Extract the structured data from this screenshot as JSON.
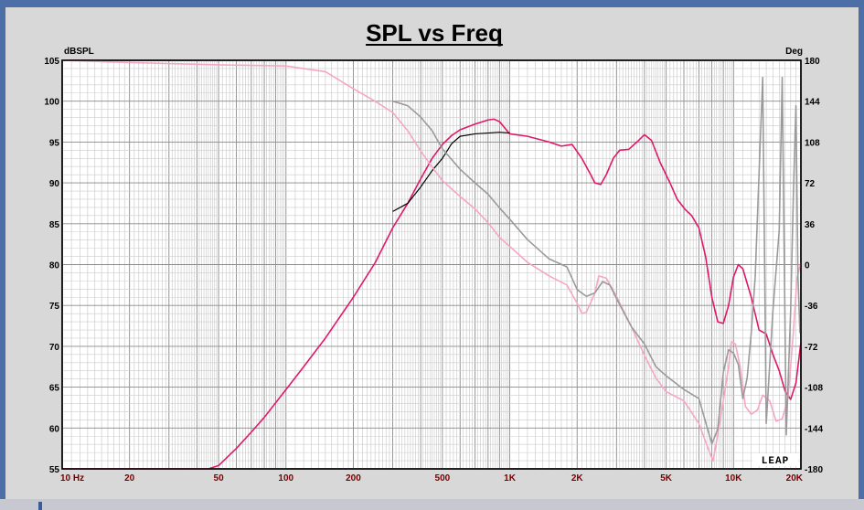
{
  "chart_data": {
    "type": "line",
    "title": "SPL vs Freq",
    "left_unit": "dBSPL",
    "right_unit": "Deg",
    "x_scale": "log",
    "xlim": [
      10,
      20000
    ],
    "ylim": [
      55,
      105
    ],
    "y2lim": [
      -180,
      180
    ],
    "grid": true,
    "x_ticks": [
      {
        "v": 10,
        "label": "10 Hz"
      },
      {
        "v": 20,
        "label": "20"
      },
      {
        "v": 50,
        "label": "50"
      },
      {
        "v": 100,
        "label": "100"
      },
      {
        "v": 200,
        "label": "200"
      },
      {
        "v": 500,
        "label": "500"
      },
      {
        "v": 1000,
        "label": "1K"
      },
      {
        "v": 2000,
        "label": "2K"
      },
      {
        "v": 5000,
        "label": "5K"
      },
      {
        "v": 10000,
        "label": "10K"
      },
      {
        "v": 20000,
        "label": "20K"
      }
    ],
    "y_ticks": [
      "105",
      "100",
      "95",
      "90",
      "85",
      "80",
      "75",
      "70",
      "65",
      "60",
      "55"
    ],
    "y2_ticks": [
      "180",
      "144",
      "108",
      "72",
      "36",
      "0",
      "-36",
      "-72",
      "-108",
      "-144",
      "-180"
    ],
    "watermark": "LEAP",
    "series": [
      {
        "axis": "left",
        "color": "#e0186a",
        "width": 1.6,
        "points": [
          [
            10,
            55
          ],
          [
            20,
            55
          ],
          [
            45,
            55
          ],
          [
            50,
            55.4
          ],
          [
            60,
            57.5
          ],
          [
            70,
            59.5
          ],
          [
            80,
            61.3
          ],
          [
            100,
            64.7
          ],
          [
            120,
            67.5
          ],
          [
            150,
            71
          ],
          [
            200,
            76
          ],
          [
            250,
            80.2
          ],
          [
            300,
            84.5
          ],
          [
            350,
            87.5
          ],
          [
            400,
            90.5
          ],
          [
            450,
            93
          ],
          [
            500,
            94.7
          ],
          [
            550,
            95.8
          ],
          [
            600,
            96.5
          ],
          [
            700,
            97.2
          ],
          [
            800,
            97.7
          ],
          [
            850,
            97.8
          ],
          [
            900,
            97.5
          ],
          [
            1000,
            96
          ],
          [
            1200,
            95.7
          ],
          [
            1500,
            95
          ],
          [
            1700,
            94.5
          ],
          [
            1900,
            94.7
          ],
          [
            2100,
            93
          ],
          [
            2300,
            91
          ],
          [
            2400,
            90
          ],
          [
            2550,
            89.8
          ],
          [
            2700,
            91
          ],
          [
            2900,
            93
          ],
          [
            3100,
            94
          ],
          [
            3400,
            94.1
          ],
          [
            3700,
            95
          ],
          [
            4000,
            95.9
          ],
          [
            4300,
            95.2
          ],
          [
            4700,
            92.5
          ],
          [
            5200,
            90
          ],
          [
            5600,
            88
          ],
          [
            6100,
            86.7
          ],
          [
            6500,
            86
          ],
          [
            7000,
            84.5
          ],
          [
            7500,
            81
          ],
          [
            8000,
            76
          ],
          [
            8500,
            73
          ],
          [
            9000,
            72.8
          ],
          [
            9500,
            75
          ],
          [
            10000,
            78.5
          ],
          [
            10500,
            80
          ],
          [
            11000,
            79.5
          ],
          [
            12000,
            76
          ],
          [
            13000,
            72
          ],
          [
            14000,
            71.5
          ],
          [
            15000,
            69
          ],
          [
            16000,
            67
          ],
          [
            17000,
            64.5
          ],
          [
            18000,
            63.5
          ],
          [
            19000,
            65.5
          ],
          [
            20000,
            70.5
          ]
        ]
      },
      {
        "axis": "left",
        "color": "#000000",
        "width": 1.2,
        "points": [
          [
            300,
            86.5
          ],
          [
            350,
            87.5
          ],
          [
            400,
            89.5
          ],
          [
            450,
            91.5
          ],
          [
            500,
            93
          ],
          [
            550,
            94.8
          ],
          [
            600,
            95.7
          ],
          [
            700,
            96
          ],
          [
            800,
            96.1
          ],
          [
            900,
            96.2
          ],
          [
            1000,
            96.1
          ]
        ]
      },
      {
        "axis": "right",
        "color": "#f5a6c6",
        "width": 1.6,
        "points": [
          [
            10,
            180
          ],
          [
            20,
            178
          ],
          [
            50,
            176
          ],
          [
            100,
            175
          ],
          [
            150,
            170
          ],
          [
            200,
            155
          ],
          [
            250,
            144
          ],
          [
            300,
            134
          ],
          [
            350,
            118
          ],
          [
            400,
            100
          ],
          [
            450,
            86
          ],
          [
            500,
            74
          ],
          [
            600,
            60
          ],
          [
            700,
            49
          ],
          [
            800,
            37
          ],
          [
            900,
            24
          ],
          [
            1000,
            16
          ],
          [
            1200,
            2
          ],
          [
            1500,
            -10
          ],
          [
            1800,
            -18
          ],
          [
            2000,
            -34
          ],
          [
            2100,
            -43
          ],
          [
            2200,
            -42
          ],
          [
            2400,
            -25
          ],
          [
            2500,
            -10
          ],
          [
            2700,
            -12
          ],
          [
            3000,
            -28
          ],
          [
            3500,
            -55
          ],
          [
            4000,
            -80
          ],
          [
            4500,
            -100
          ],
          [
            5000,
            -112
          ],
          [
            6000,
            -120
          ],
          [
            7000,
            -140
          ],
          [
            7800,
            -165
          ],
          [
            8100,
            -173
          ],
          [
            8500,
            -150
          ],
          [
            9000,
            -120
          ],
          [
            9500,
            -90
          ],
          [
            9800,
            -68
          ],
          [
            10200,
            -70
          ],
          [
            10700,
            -90
          ],
          [
            11300,
            -125
          ],
          [
            12000,
            -132
          ],
          [
            12800,
            -128
          ],
          [
            13500,
            -115
          ],
          [
            14500,
            -120
          ],
          [
            15500,
            -138
          ],
          [
            16500,
            -136
          ],
          [
            17500,
            -118
          ],
          [
            18500,
            -60
          ],
          [
            19200,
            -12
          ],
          [
            20000,
            2
          ]
        ]
      },
      {
        "axis": "right",
        "color": "#9a9a9a",
        "width": 1.6,
        "points": [
          [
            300,
            144
          ],
          [
            350,
            140
          ],
          [
            400,
            130
          ],
          [
            450,
            118
          ],
          [
            500,
            102
          ],
          [
            600,
            84
          ],
          [
            700,
            72
          ],
          [
            800,
            62
          ],
          [
            900,
            50
          ],
          [
            1000,
            40
          ],
          [
            1200,
            22
          ],
          [
            1500,
            5
          ],
          [
            1800,
            -2
          ],
          [
            2000,
            -22
          ],
          [
            2200,
            -28
          ],
          [
            2400,
            -25
          ],
          [
            2600,
            -15
          ],
          [
            2800,
            -18
          ],
          [
            3000,
            -30
          ],
          [
            3500,
            -55
          ],
          [
            4000,
            -70
          ],
          [
            4500,
            -90
          ],
          [
            5000,
            -98
          ],
          [
            6000,
            -110
          ],
          [
            7000,
            -118
          ],
          [
            8000,
            -158
          ],
          [
            8500,
            -145
          ],
          [
            9000,
            -95
          ],
          [
            9500,
            -75
          ],
          [
            10000,
            -78
          ],
          [
            10500,
            -88
          ],
          [
            11000,
            -118
          ],
          [
            11500,
            -100
          ],
          [
            12000,
            -60
          ],
          [
            12500,
            -10
          ],
          [
            13000,
            80
          ],
          [
            13500,
            165
          ],
          [
            14000,
            -140
          ],
          [
            15000,
            -40
          ],
          [
            16000,
            30
          ],
          [
            16500,
            165
          ],
          [
            17200,
            -150
          ],
          [
            18000,
            -40
          ],
          [
            18500,
            60
          ],
          [
            19000,
            140
          ],
          [
            19400,
            -10
          ],
          [
            19800,
            -60
          ],
          [
            20000,
            -55
          ]
        ]
      }
    ]
  }
}
